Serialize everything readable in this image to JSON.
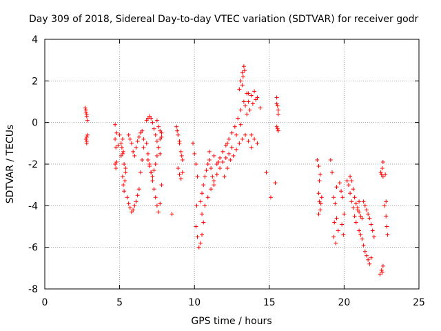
{
  "chart_data": {
    "type": "scatter",
    "title": "Day 309 of 2018, Sidereal Day-to-day VTEC variation (SDTVAR) for receiver godr",
    "xlabel": "GPS time / hours",
    "ylabel": "SDTVAR / TECUs",
    "xlim": [
      0,
      25
    ],
    "ylim": [
      -8,
      4
    ],
    "xticks": [
      "0",
      "5",
      "10",
      "15",
      "20",
      "25"
    ],
    "yticks": [
      "4",
      "2",
      "0",
      "-2",
      "-4",
      "-6",
      "-8"
    ],
    "grid": true,
    "marker": "+",
    "color": "#ff0000",
    "series": [
      {
        "name": "SDTVAR",
        "x": [
          2.7,
          2.75,
          2.8,
          2.85,
          2.8,
          2.75,
          2.8,
          2.85,
          2.8,
          2.75,
          2.8,
          4.7,
          4.8,
          4.9,
          4.7,
          4.75,
          4.8,
          4.7,
          4.75,
          5.0,
          5.1,
          5.2,
          5.3,
          5.4,
          5.2,
          5.25,
          5.3,
          5.35,
          5.4,
          5.1,
          5.15,
          5.2,
          5.25,
          5.5,
          5.6,
          5.7,
          5.8,
          5.9,
          6.0,
          6.1,
          6.2,
          6.3,
          6.4,
          6.5,
          6.6,
          5.6,
          5.7,
          5.8,
          5.9,
          6.0,
          6.1,
          6.2,
          6.3,
          6.4,
          6.5,
          6.6,
          6.8,
          6.9,
          7.0,
          7.1,
          7.2,
          7.3,
          7.4,
          7.5,
          7.6,
          7.7,
          7.8,
          6.8,
          6.9,
          7.0,
          7.1,
          7.2,
          7.3,
          7.4,
          7.5,
          7.6,
          7.7,
          6.9,
          7.0,
          7.1,
          7.2,
          7.3,
          7.4,
          7.5,
          7.6,
          7.7,
          7.8,
          7.5,
          7.6,
          7.7,
          7.8,
          8.5,
          8.8,
          8.9,
          9.0,
          9.1,
          9.2,
          8.9,
          9.0,
          9.1,
          9.2,
          8.85,
          9.0,
          9.15,
          9.9,
          10.0,
          10.1,
          10.2,
          10.15,
          10.1,
          10.2,
          10.3,
          10.4,
          10.5,
          10.6,
          10.4,
          10.5,
          10.6,
          10.7,
          10.8,
          10.9,
          11.0,
          11.1,
          11.2,
          11.3,
          10.5,
          10.7,
          10.9,
          11.1,
          11.3,
          11.5,
          11.7,
          11.9,
          12.1,
          12.3,
          11.5,
          11.7,
          11.9,
          12.1,
          12.3,
          12.5,
          12.7,
          12.9,
          13.1,
          13.3,
          13.5,
          12.0,
          12.2,
          12.4,
          12.6,
          12.8,
          13.0,
          13.2,
          13.4,
          13.6,
          13.8,
          11.0,
          11.3,
          11.6,
          11.9,
          12.2,
          12.5,
          12.8,
          13.1,
          13.0,
          13.1,
          13.2,
          13.3,
          13.25,
          13.2,
          13.35,
          13.4,
          13.6,
          13.8,
          14.0,
          14.2,
          14.4,
          13.5,
          13.7,
          13.9,
          13.6,
          14.1,
          13.8,
          14.0,
          14.2,
          14.8,
          15.1,
          15.4,
          15.5,
          15.6,
          15.5,
          15.55,
          15.6,
          15.5,
          15.6,
          15.55,
          18.2,
          18.3,
          18.4,
          18.3,
          18.35,
          18.4,
          18.3,
          18.5,
          18.45,
          18.35,
          19.1,
          19.2,
          19.3,
          19.4,
          19.5,
          19.6,
          19.3,
          19.45,
          19.35,
          19.5,
          19.7,
          19.8,
          19.9,
          20.0,
          19.85,
          19.95,
          20.2,
          20.3,
          20.4,
          20.5,
          20.6,
          20.7,
          20.8,
          20.9,
          21.0,
          20.4,
          20.5,
          20.6,
          20.7,
          20.8,
          20.9,
          21.0,
          21.1,
          21.2,
          21.0,
          21.1,
          21.2,
          21.3,
          21.4,
          21.5,
          21.6,
          21.7,
          21.8,
          21.3,
          21.4,
          21.5,
          21.6,
          21.7,
          21.8,
          21.9,
          22.0,
          22.4,
          22.5,
          22.6,
          22.55,
          22.45,
          22.6,
          22.5,
          22.6,
          22.55,
          22.7,
          22.8,
          22.85,
          22.9,
          22.8,
          22.75
        ],
        "y": [
          0.7,
          0.5,
          0.3,
          0.1,
          0.4,
          -0.8,
          -1.0,
          -0.6,
          -0.9,
          0.6,
          -0.7,
          -0.1,
          -0.5,
          -1.1,
          -2.0,
          -2.2,
          -1.9,
          -0.8,
          -1.2,
          -0.6,
          -1.0,
          -1.5,
          -2.0,
          -2.4,
          -2.6,
          -3.0,
          -3.3,
          -2.8,
          -2.2,
          -1.6,
          -1.2,
          -0.8,
          -1.4,
          -3.6,
          -3.9,
          -4.1,
          -4.3,
          -4.2,
          -4.0,
          -3.8,
          -3.5,
          -3.2,
          -2.4,
          -1.8,
          -1.2,
          -0.6,
          -0.8,
          -1.0,
          -1.4,
          -1.6,
          -1.2,
          -0.9,
          -0.7,
          -0.5,
          -0.4,
          -0.8,
          -1.0,
          -1.5,
          -2.0,
          -2.4,
          -2.8,
          -3.2,
          -3.6,
          -4.0,
          -4.3,
          -3.9,
          -3.0,
          0.1,
          0.2,
          0.3,
          0.2,
          0.0,
          -0.3,
          -0.6,
          -0.9,
          -1.2,
          -1.5,
          -1.8,
          -2.1,
          -2.4,
          -2.6,
          -2.3,
          -2.0,
          -1.6,
          -1.2,
          -0.8,
          -0.5,
          0.1,
          -0.2,
          -0.4,
          -0.7,
          -4.4,
          -0.2,
          -0.6,
          -1.0,
          -1.4,
          -1.8,
          -2.2,
          -2.5,
          -2.7,
          -2.4,
          -0.4,
          -0.9,
          -1.6,
          -1.0,
          -1.5,
          -2.0,
          -2.6,
          -4.0,
          -5.0,
          -5.5,
          -6.0,
          -5.8,
          -5.4,
          -4.8,
          -3.8,
          -3.4,
          -3.0,
          -2.6,
          -2.3,
          -2.0,
          -1.8,
          -2.2,
          -2.6,
          -3.0,
          -4.4,
          -4.0,
          -3.6,
          -3.2,
          -2.8,
          -2.5,
          -2.2,
          -1.9,
          -1.7,
          -1.5,
          -2.0,
          -1.7,
          -1.4,
          -1.1,
          -0.8,
          -0.5,
          -0.2,
          0.2,
          0.6,
          1.0,
          1.4,
          -2.6,
          -2.2,
          -1.8,
          -1.6,
          -1.3,
          -1.0,
          -0.8,
          -0.6,
          -0.9,
          -1.2,
          -1.4,
          -1.6,
          -1.9,
          -1.4,
          -1.0,
          -1.2,
          -0.6,
          -0.1,
          1.6,
          2.0,
          2.4,
          2.7,
          2.2,
          1.8,
          2.5,
          0.8,
          1.0,
          1.3,
          1.5,
          1.2,
          0.7,
          0.4,
          0.6,
          0.9,
          1.4,
          1.1,
          -0.6,
          -0.8,
          -1.0,
          -2.4,
          -3.6,
          -2.9,
          0.9,
          0.6,
          1.2,
          0.8,
          0.4,
          -0.2,
          -0.4,
          -0.3,
          -1.8,
          -2.1,
          -2.5,
          -3.4,
          -3.8,
          -4.2,
          -4.4,
          -3.6,
          -3.9,
          -2.8,
          -1.8,
          -2.4,
          -3.6,
          -3.9,
          -4.6,
          -5.2,
          -5.5,
          -5.8,
          -4.8,
          -3.1,
          -2.9,
          -3.3,
          -3.6,
          -4.4,
          -4.9,
          -5.4,
          -2.8,
          -3.0,
          -3.4,
          -3.8,
          -4.1,
          -4.5,
          -4.8,
          -4.2,
          -3.8,
          -2.6,
          -2.8,
          -3.2,
          -3.6,
          -3.9,
          -4.1,
          -4.3,
          -4.5,
          -4.6,
          -5.2,
          -5.4,
          -5.6,
          -5.9,
          -6.2,
          -6.4,
          -6.6,
          -6.8,
          -6.5,
          -3.8,
          -4.0,
          -4.2,
          -4.4,
          -4.6,
          -4.9,
          -5.2,
          -5.5,
          -7.3,
          -7.1,
          -6.9,
          -7.2,
          -2.4,
          -2.6,
          -2.5,
          -1.9,
          -2.2,
          -4.0,
          -4.5,
          -5.0,
          -5.4,
          -3.8,
          -2.5
        ]
      }
    ]
  }
}
